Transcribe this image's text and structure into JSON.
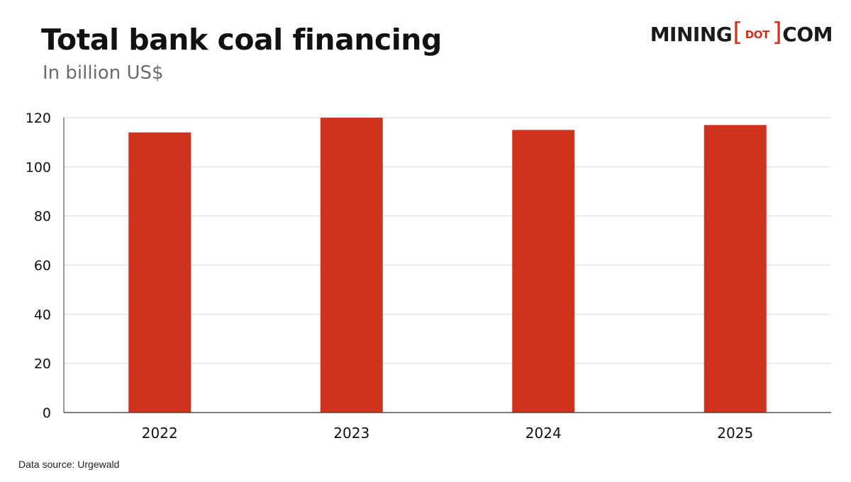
{
  "header": {
    "title": "Total bank coal financing",
    "subtitle": "In billion US$"
  },
  "logo": {
    "part1": "MINING",
    "bracket_open": "[",
    "middle": "DOT",
    "bracket_close": "]",
    "part2": "COM"
  },
  "footer": {
    "source": "Data source: Urgewald"
  },
  "colors": {
    "bar": "#d0321d",
    "grid": "#d9d9d9",
    "axis": "#333333",
    "text": "#111111"
  },
  "chart_data": {
    "type": "bar",
    "title": "Total bank coal financing",
    "subtitle": "In billion US$",
    "xlabel": "",
    "ylabel": "",
    "categories": [
      "2022",
      "2023",
      "2024",
      "2025"
    ],
    "values": [
      114,
      120,
      115,
      117
    ],
    "ylim": [
      0,
      120
    ],
    "yticks": [
      0,
      20,
      40,
      60,
      80,
      100,
      120
    ],
    "grid": true,
    "legend": "none"
  }
}
